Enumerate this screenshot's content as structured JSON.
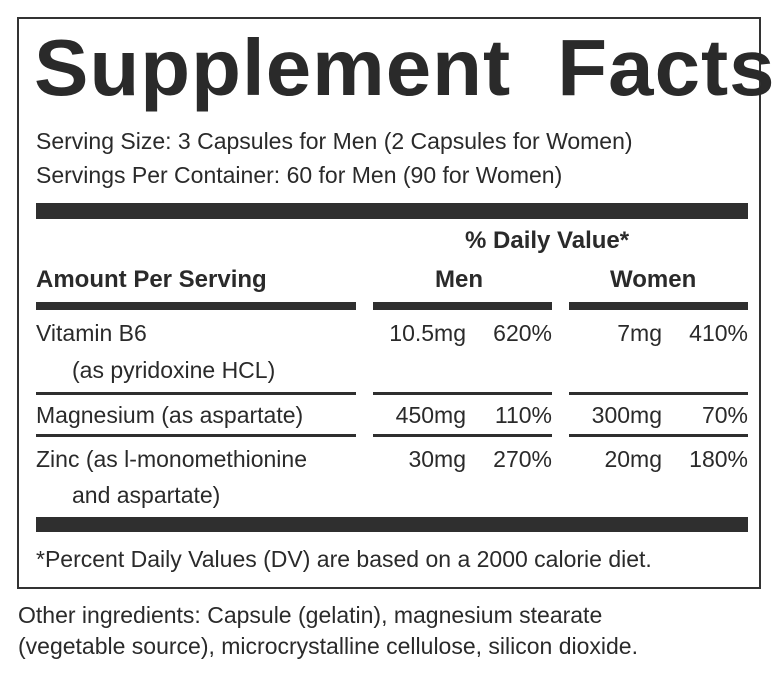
{
  "title": "Supplement Facts",
  "serving_size": "Serving Size: 3 Capsules for Men (2 Capsules for Women)",
  "servings_per_container": "Servings Per Container: 60 for Men (90 for Women)",
  "header": {
    "daily_value": "% Daily Value*",
    "amount_per_serving": "Amount Per Serving",
    "men": "Men",
    "women": "Women"
  },
  "rows": [
    {
      "name": "Vitamin B6",
      "sub": "(as pyridoxine HCL)",
      "men_amount": "10.5mg",
      "men_dv": "620%",
      "women_amount": "7mg",
      "women_dv": "410%"
    },
    {
      "name": "Magnesium (as aspartate)",
      "sub": "",
      "men_amount": "450mg",
      "men_dv": "110%",
      "women_amount": "300mg",
      "women_dv": "70%"
    },
    {
      "name": "Zinc (as l-monomethionine",
      "sub": "and aspartate)",
      "men_amount": "30mg",
      "men_dv": "270%",
      "women_amount": "20mg",
      "women_dv": "180%"
    }
  ],
  "footnote": "*Percent Daily Values (DV) are based on a 2000 calorie diet.",
  "other_ingredients": [
    "Other ingredients: Capsule (gelatin), magnesium stearate",
    "(vegetable source), microcrystalline cellulose, silicon dioxide."
  ]
}
